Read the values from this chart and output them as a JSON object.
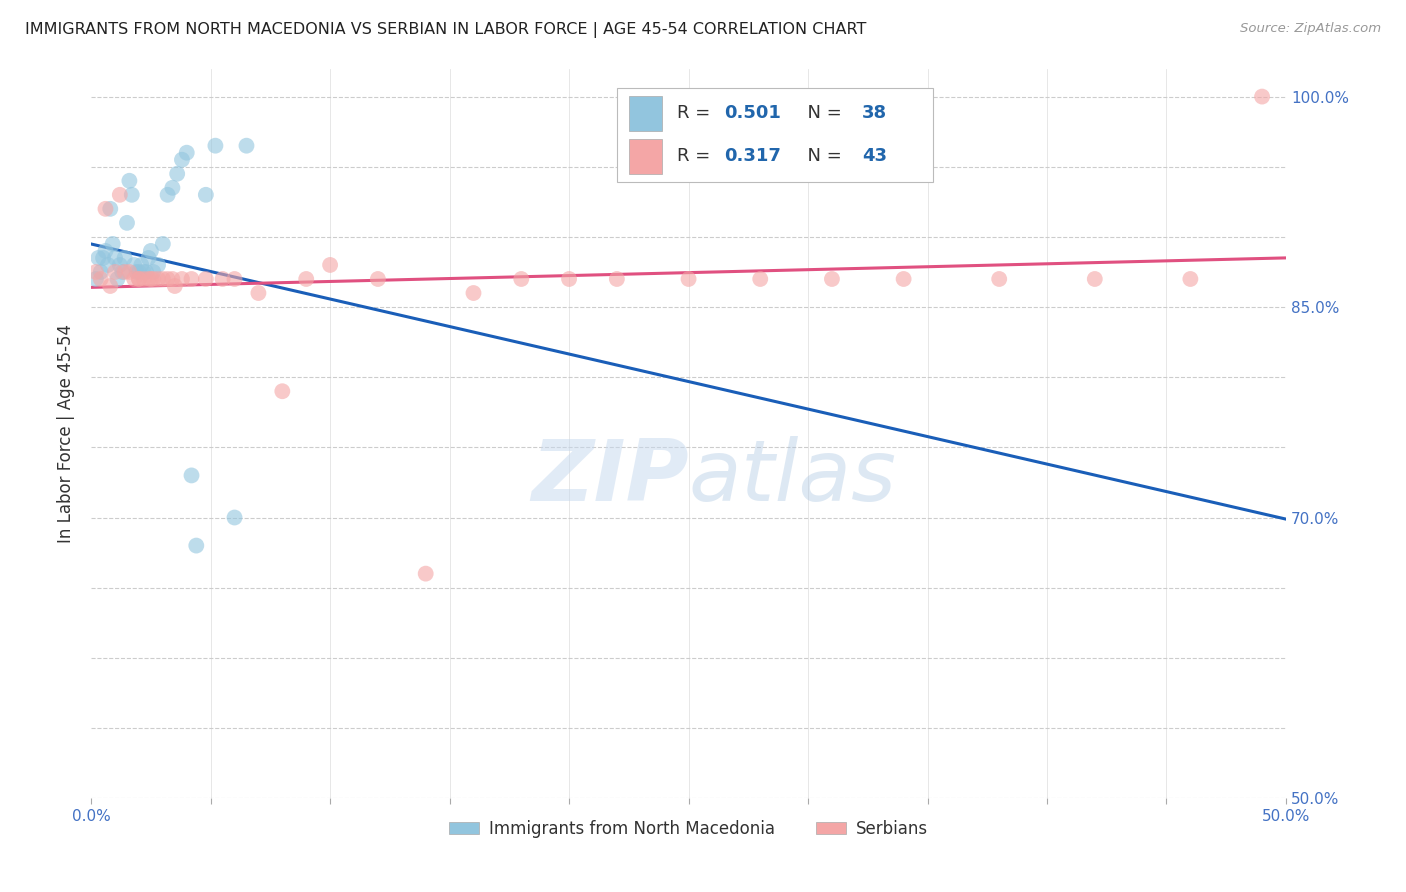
{
  "title": "IMMIGRANTS FROM NORTH MACEDONIA VS SERBIAN IN LABOR FORCE | AGE 45-54 CORRELATION CHART",
  "source": "Source: ZipAtlas.com",
  "ylabel": "In Labor Force | Age 45-54",
  "xmin": 0.0,
  "xmax": 0.5,
  "ymin": 0.5,
  "ymax": 1.02,
  "xticks": [
    0.0,
    0.05,
    0.1,
    0.15,
    0.2,
    0.25,
    0.3,
    0.35,
    0.4,
    0.45,
    0.5
  ],
  "xtick_labels": [
    "0.0%",
    "",
    "",
    "",
    "",
    "",
    "",
    "",
    "",
    "",
    "50.0%"
  ],
  "yticks": [
    0.5,
    0.55,
    0.6,
    0.65,
    0.7,
    0.75,
    0.8,
    0.85,
    0.9,
    0.95,
    1.0
  ],
  "ytick_labels": [
    "50.0%",
    "",
    "",
    "",
    "70.0%",
    "",
    "",
    "85.0%",
    "",
    "",
    "100.0%"
  ],
  "color_macedonia": "#92c5de",
  "color_serbian": "#f4a6a6",
  "color_line_macedonia": "#1a5eb8",
  "color_line_serbian": "#e05080",
  "label_macedonia": "Immigrants from North Macedonia",
  "label_serbian": "Serbians",
  "north_macedonia_x": [
    0.002,
    0.003,
    0.004,
    0.005,
    0.006,
    0.007,
    0.008,
    0.009,
    0.01,
    0.011,
    0.012,
    0.013,
    0.014,
    0.015,
    0.016,
    0.017,
    0.018,
    0.019,
    0.02,
    0.021,
    0.022,
    0.023,
    0.024,
    0.025,
    0.026,
    0.028,
    0.03,
    0.032,
    0.034,
    0.036,
    0.038,
    0.04,
    0.042,
    0.044,
    0.048,
    0.052,
    0.06,
    0.065
  ],
  "north_macedonia_y": [
    0.87,
    0.885,
    0.875,
    0.885,
    0.89,
    0.88,
    0.92,
    0.895,
    0.885,
    0.87,
    0.88,
    0.875,
    0.885,
    0.91,
    0.94,
    0.93,
    0.88,
    0.875,
    0.875,
    0.88,
    0.875,
    0.875,
    0.885,
    0.89,
    0.875,
    0.88,
    0.895,
    0.93,
    0.935,
    0.945,
    0.955,
    0.96,
    0.73,
    0.68,
    0.93,
    0.965,
    0.7,
    0.965
  ],
  "serbian_x": [
    0.002,
    0.004,
    0.006,
    0.008,
    0.01,
    0.012,
    0.014,
    0.016,
    0.018,
    0.02,
    0.022,
    0.024,
    0.026,
    0.028,
    0.03,
    0.032,
    0.034,
    0.038,
    0.042,
    0.048,
    0.055,
    0.06,
    0.07,
    0.08,
    0.09,
    0.1,
    0.12,
    0.14,
    0.16,
    0.18,
    0.2,
    0.22,
    0.25,
    0.28,
    0.31,
    0.34,
    0.38,
    0.42,
    0.46,
    0.49,
    0.02,
    0.025,
    0.035
  ],
  "serbian_y": [
    0.875,
    0.87,
    0.92,
    0.865,
    0.875,
    0.93,
    0.875,
    0.875,
    0.87,
    0.87,
    0.87,
    0.87,
    0.87,
    0.87,
    0.87,
    0.87,
    0.87,
    0.87,
    0.87,
    0.87,
    0.87,
    0.87,
    0.86,
    0.79,
    0.87,
    0.88,
    0.87,
    0.66,
    0.86,
    0.87,
    0.87,
    0.87,
    0.87,
    0.87,
    0.87,
    0.87,
    0.87,
    0.87,
    0.87,
    1.0,
    0.87,
    0.87,
    0.865
  ],
  "background_color": "#ffffff",
  "grid_color": "#cccccc"
}
